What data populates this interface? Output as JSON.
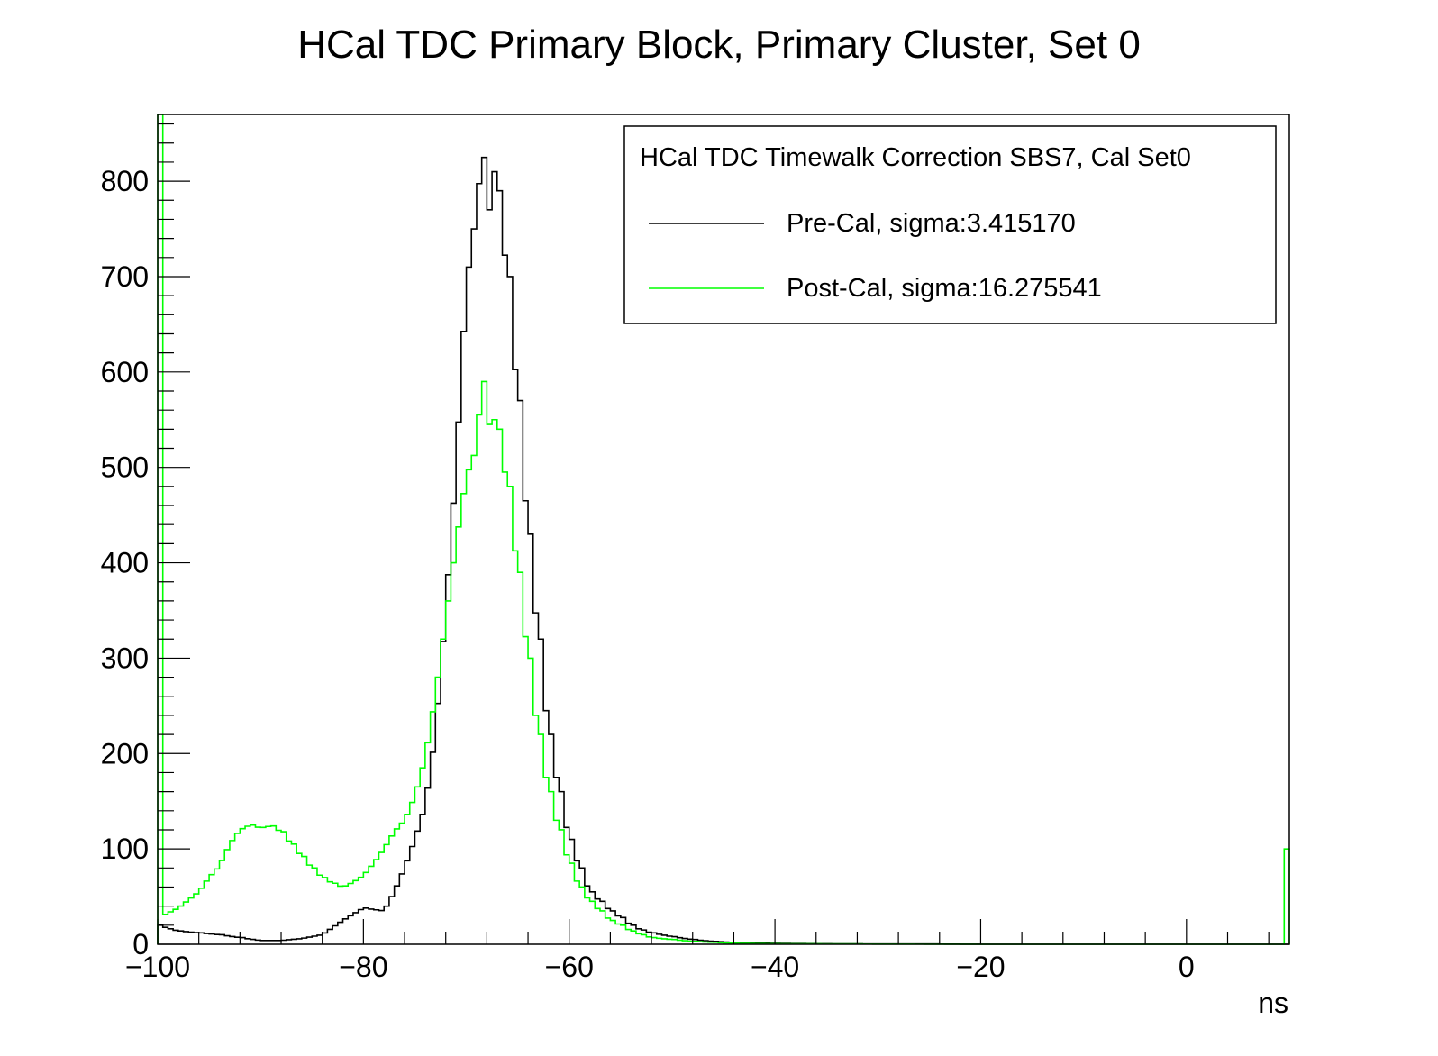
{
  "chart_data": {
    "type": "histogram",
    "title": "HCal TDC Primary Block, Primary Cluster, Set 0",
    "xlabel": "ns",
    "ylabel": "",
    "xlim": [
      -100,
      10
    ],
    "ylim": [
      0,
      870
    ],
    "xticks": [
      -100,
      -80,
      -60,
      -40,
      -20,
      0
    ],
    "yticks": [
      0,
      100,
      200,
      300,
      400,
      500,
      600,
      700,
      800
    ],
    "grid": false,
    "legend": {
      "header": "HCal TDC Timewalk Correction SBS7, Cal Set0",
      "placement": "top-right",
      "entries": [
        {
          "label": "Pre-Cal, sigma:3.415170",
          "color": "#000000"
        },
        {
          "label": "Post-Cal, sigma:16.275541",
          "color": "#00ff00"
        }
      ]
    },
    "bin_width": 0.5,
    "series": [
      {
        "name": "Pre-Cal, sigma:3.415170",
        "color": "#000000",
        "points": [
          [
            -100,
            20
          ],
          [
            -98,
            14
          ],
          [
            -96,
            12
          ],
          [
            -94,
            10
          ],
          [
            -92,
            7
          ],
          [
            -90,
            4
          ],
          [
            -88,
            4
          ],
          [
            -86,
            6
          ],
          [
            -84,
            10
          ],
          [
            -82,
            25
          ],
          [
            -80,
            38
          ],
          [
            -78,
            35
          ],
          [
            -77,
            55
          ],
          [
            -76,
            80
          ],
          [
            -75,
            110
          ],
          [
            -74,
            145
          ],
          [
            -73,
            220
          ],
          [
            -72,
            350
          ],
          [
            -71,
            500
          ],
          [
            -70,
            690
          ],
          [
            -69,
            770
          ],
          [
            -68.5,
            825
          ],
          [
            -68,
            730
          ],
          [
            -67.5,
            810
          ],
          [
            -67,
            790
          ],
          [
            -66,
            700
          ],
          [
            -65,
            570
          ],
          [
            -64,
            430
          ],
          [
            -63,
            320
          ],
          [
            -62,
            220
          ],
          [
            -61,
            160
          ],
          [
            -60,
            110
          ],
          [
            -59,
            80
          ],
          [
            -58,
            55
          ],
          [
            -57,
            45
          ],
          [
            -56,
            35
          ],
          [
            -55,
            28
          ],
          [
            -54,
            20
          ],
          [
            -53,
            15
          ],
          [
            -52,
            12
          ],
          [
            -50,
            8
          ],
          [
            -48,
            5
          ],
          [
            -46,
            3
          ],
          [
            -44,
            2
          ],
          [
            -40,
            1
          ],
          [
            -35,
            0.5
          ],
          [
            -30,
            0.3
          ],
          [
            -25,
            0.3
          ],
          [
            -20,
            0
          ],
          [
            10,
            0
          ]
        ]
      },
      {
        "name": "Post-Cal, sigma:16.275541",
        "color": "#00ff00",
        "points": [
          [
            -100,
            870
          ],
          [
            -99.5,
            30
          ],
          [
            -98,
            38
          ],
          [
            -96,
            55
          ],
          [
            -95,
            70
          ],
          [
            -94,
            82
          ],
          [
            -93,
            105
          ],
          [
            -92,
            120
          ],
          [
            -91,
            125
          ],
          [
            -90,
            122
          ],
          [
            -89,
            124
          ],
          [
            -88,
            118
          ],
          [
            -87,
            105
          ],
          [
            -86,
            92
          ],
          [
            -85,
            80
          ],
          [
            -84,
            70
          ],
          [
            -83,
            64
          ],
          [
            -82,
            60
          ],
          [
            -81,
            65
          ],
          [
            -80,
            72
          ],
          [
            -79,
            85
          ],
          [
            -78,
            100
          ],
          [
            -77,
            118
          ],
          [
            -76,
            130
          ],
          [
            -75,
            155
          ],
          [
            -74,
            195
          ],
          [
            -73,
            260
          ],
          [
            -72,
            340
          ],
          [
            -71,
            420
          ],
          [
            -70,
            490
          ],
          [
            -69,
            520
          ],
          [
            -68.5,
            590
          ],
          [
            -68,
            540
          ],
          [
            -67.5,
            550
          ],
          [
            -67,
            540
          ],
          [
            -66,
            480
          ],
          [
            -65,
            390
          ],
          [
            -64,
            300
          ],
          [
            -63,
            220
          ],
          [
            -62,
            160
          ],
          [
            -61,
            120
          ],
          [
            -60,
            85
          ],
          [
            -59,
            60
          ],
          [
            -58,
            45
          ],
          [
            -57,
            35
          ],
          [
            -56,
            25
          ],
          [
            -55,
            20
          ],
          [
            -54,
            14
          ],
          [
            -53,
            10
          ],
          [
            -52,
            7
          ],
          [
            -50,
            5
          ],
          [
            -48,
            3
          ],
          [
            -46,
            2
          ],
          [
            -44,
            1
          ],
          [
            -40,
            0.5
          ],
          [
            -30,
            0.2
          ],
          [
            -20,
            0
          ],
          [
            9.5,
            0
          ],
          [
            10,
            200
          ]
        ]
      }
    ]
  }
}
